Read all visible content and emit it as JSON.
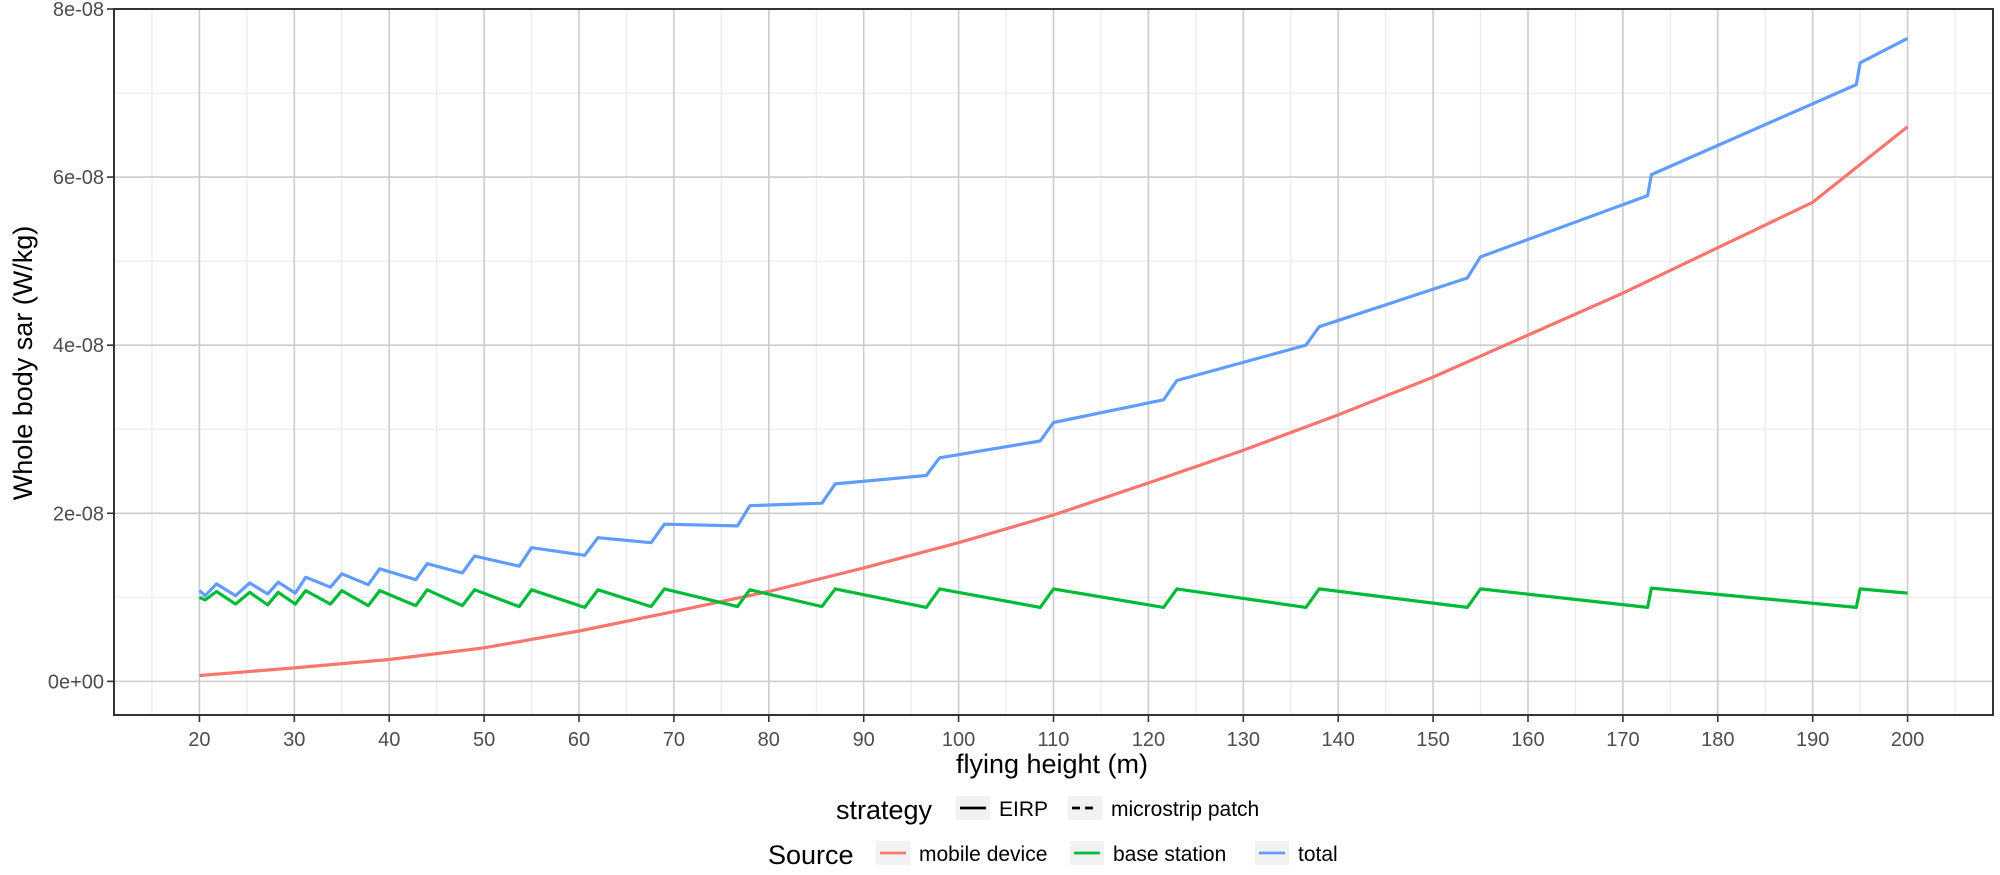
{
  "chart_data": {
    "type": "line",
    "xlabel": "flying height (m)",
    "ylabel": "Whole body sar (W/kg)",
    "xlim": [
      20,
      200
    ],
    "ylim": [
      0,
      8e-08
    ],
    "x_ticks": [
      "20",
      "30",
      "40",
      "50",
      "60",
      "70",
      "80",
      "90",
      "100",
      "110",
      "120",
      "130",
      "140",
      "150",
      "160",
      "170",
      "180",
      "190",
      "200"
    ],
    "y_ticks": [
      {
        "value": 0,
        "label": "0e+00"
      },
      {
        "value": 2e-08,
        "label": "2e-08"
      },
      {
        "value": 4e-08,
        "label": "4e-08"
      },
      {
        "value": 6e-08,
        "label": "6e-08"
      },
      {
        "value": 8e-08,
        "label": "8e-08"
      }
    ],
    "grid": true,
    "legend_position": "bottom",
    "legends": [
      {
        "title": "strategy",
        "items": [
          {
            "label": "EIRP",
            "linetype": "solid"
          },
          {
            "label": "microstrip patch",
            "linetype": "dashed"
          }
        ]
      },
      {
        "title": "Source",
        "items": [
          {
            "label": "mobile device",
            "color": "#F8766D"
          },
          {
            "label": "base station",
            "color": "#00BA38"
          },
          {
            "label": "total",
            "color": "#619CFF"
          }
        ]
      }
    ],
    "series": [
      {
        "name": "mobile device",
        "color": "#F8766D",
        "linetype": "solid",
        "x": [
          20,
          30,
          40,
          50,
          60,
          70,
          80,
          90,
          100,
          110,
          120,
          130,
          140,
          150,
          160,
          170,
          180,
          190,
          200
        ],
        "values": [
          7e-10,
          1.6e-09,
          2.6e-09,
          4e-09,
          6e-09,
          8.3e-09,
          1.07e-08,
          1.35e-08,
          1.65e-08,
          1.98e-08,
          2.36e-08,
          2.75e-08,
          3.17e-08,
          3.62e-08,
          4.12e-08,
          4.62e-08,
          5.16e-08,
          5.7e-08,
          6.6e-08
        ]
      },
      {
        "name": "base station",
        "color": "#00BA38",
        "linetype": "solid",
        "x": [
          20,
          20.6,
          21.8,
          23.8,
          25.3,
          27.2,
          28.3,
          30.1,
          31.2,
          33.8,
          35,
          37.8,
          39,
          42.8,
          44,
          47.7,
          49,
          53.7,
          55,
          60.6,
          62,
          67.6,
          69,
          76.7,
          78,
          85.6,
          87,
          96.6,
          98,
          108.6,
          110,
          121.6,
          123,
          136.6,
          138,
          153.6,
          155,
          172.6,
          173,
          194.6,
          195,
          200
        ],
        "values": [
          1e-08,
          9.7e-09,
          1.07e-08,
          9.2e-09,
          1.06e-08,
          9.1e-09,
          1.06e-08,
          9.2e-09,
          1.08e-08,
          9.2e-09,
          1.08e-08,
          9e-09,
          1.08e-08,
          9e-09,
          1.09e-08,
          9e-09,
          1.09e-08,
          8.9e-09,
          1.09e-08,
          8.8e-09,
          1.09e-08,
          8.9e-09,
          1.1e-08,
          8.9e-09,
          1.09e-08,
          8.9e-09,
          1.1e-08,
          8.8e-09,
          1.1e-08,
          8.8e-09,
          1.1e-08,
          8.8e-09,
          1.1e-08,
          8.8e-09,
          1.1e-08,
          8.8e-09,
          1.1e-08,
          8.8e-09,
          1.11e-08,
          8.8e-09,
          1.1e-08,
          1.05e-08
        ]
      },
      {
        "name": "total",
        "color": "#619CFF",
        "linetype": "solid",
        "x": [
          20,
          20.6,
          21.8,
          23.8,
          25.3,
          27.2,
          28.3,
          30.1,
          31.2,
          33.8,
          35,
          37.8,
          39,
          42.8,
          44,
          47.7,
          49,
          53.7,
          55,
          60.6,
          62,
          67.6,
          69,
          76.7,
          78,
          85.6,
          87,
          96.6,
          98,
          108.6,
          110,
          121.6,
          123,
          136.6,
          138,
          153.6,
          155,
          172.6,
          173,
          194.6,
          195,
          200
        ],
        "values": [
          1.08e-08,
          1.02e-08,
          1.16e-08,
          1.02e-08,
          1.17e-08,
          1.04e-08,
          1.18e-08,
          1.05e-08,
          1.24e-08,
          1.12e-08,
          1.28e-08,
          1.15e-08,
          1.34e-08,
          1.21e-08,
          1.4e-08,
          1.29e-08,
          1.49e-08,
          1.37e-08,
          1.59e-08,
          1.5e-08,
          1.71e-08,
          1.65e-08,
          1.87e-08,
          1.85e-08,
          2.09e-08,
          2.12e-08,
          2.35e-08,
          2.45e-08,
          2.66e-08,
          2.86e-08,
          3.08e-08,
          3.35e-08,
          3.58e-08,
          4e-08,
          4.22e-08,
          4.8e-08,
          5.05e-08,
          5.78e-08,
          6.03e-08,
          7.1e-08,
          7.36e-08,
          7.65e-08
        ]
      }
    ]
  }
}
